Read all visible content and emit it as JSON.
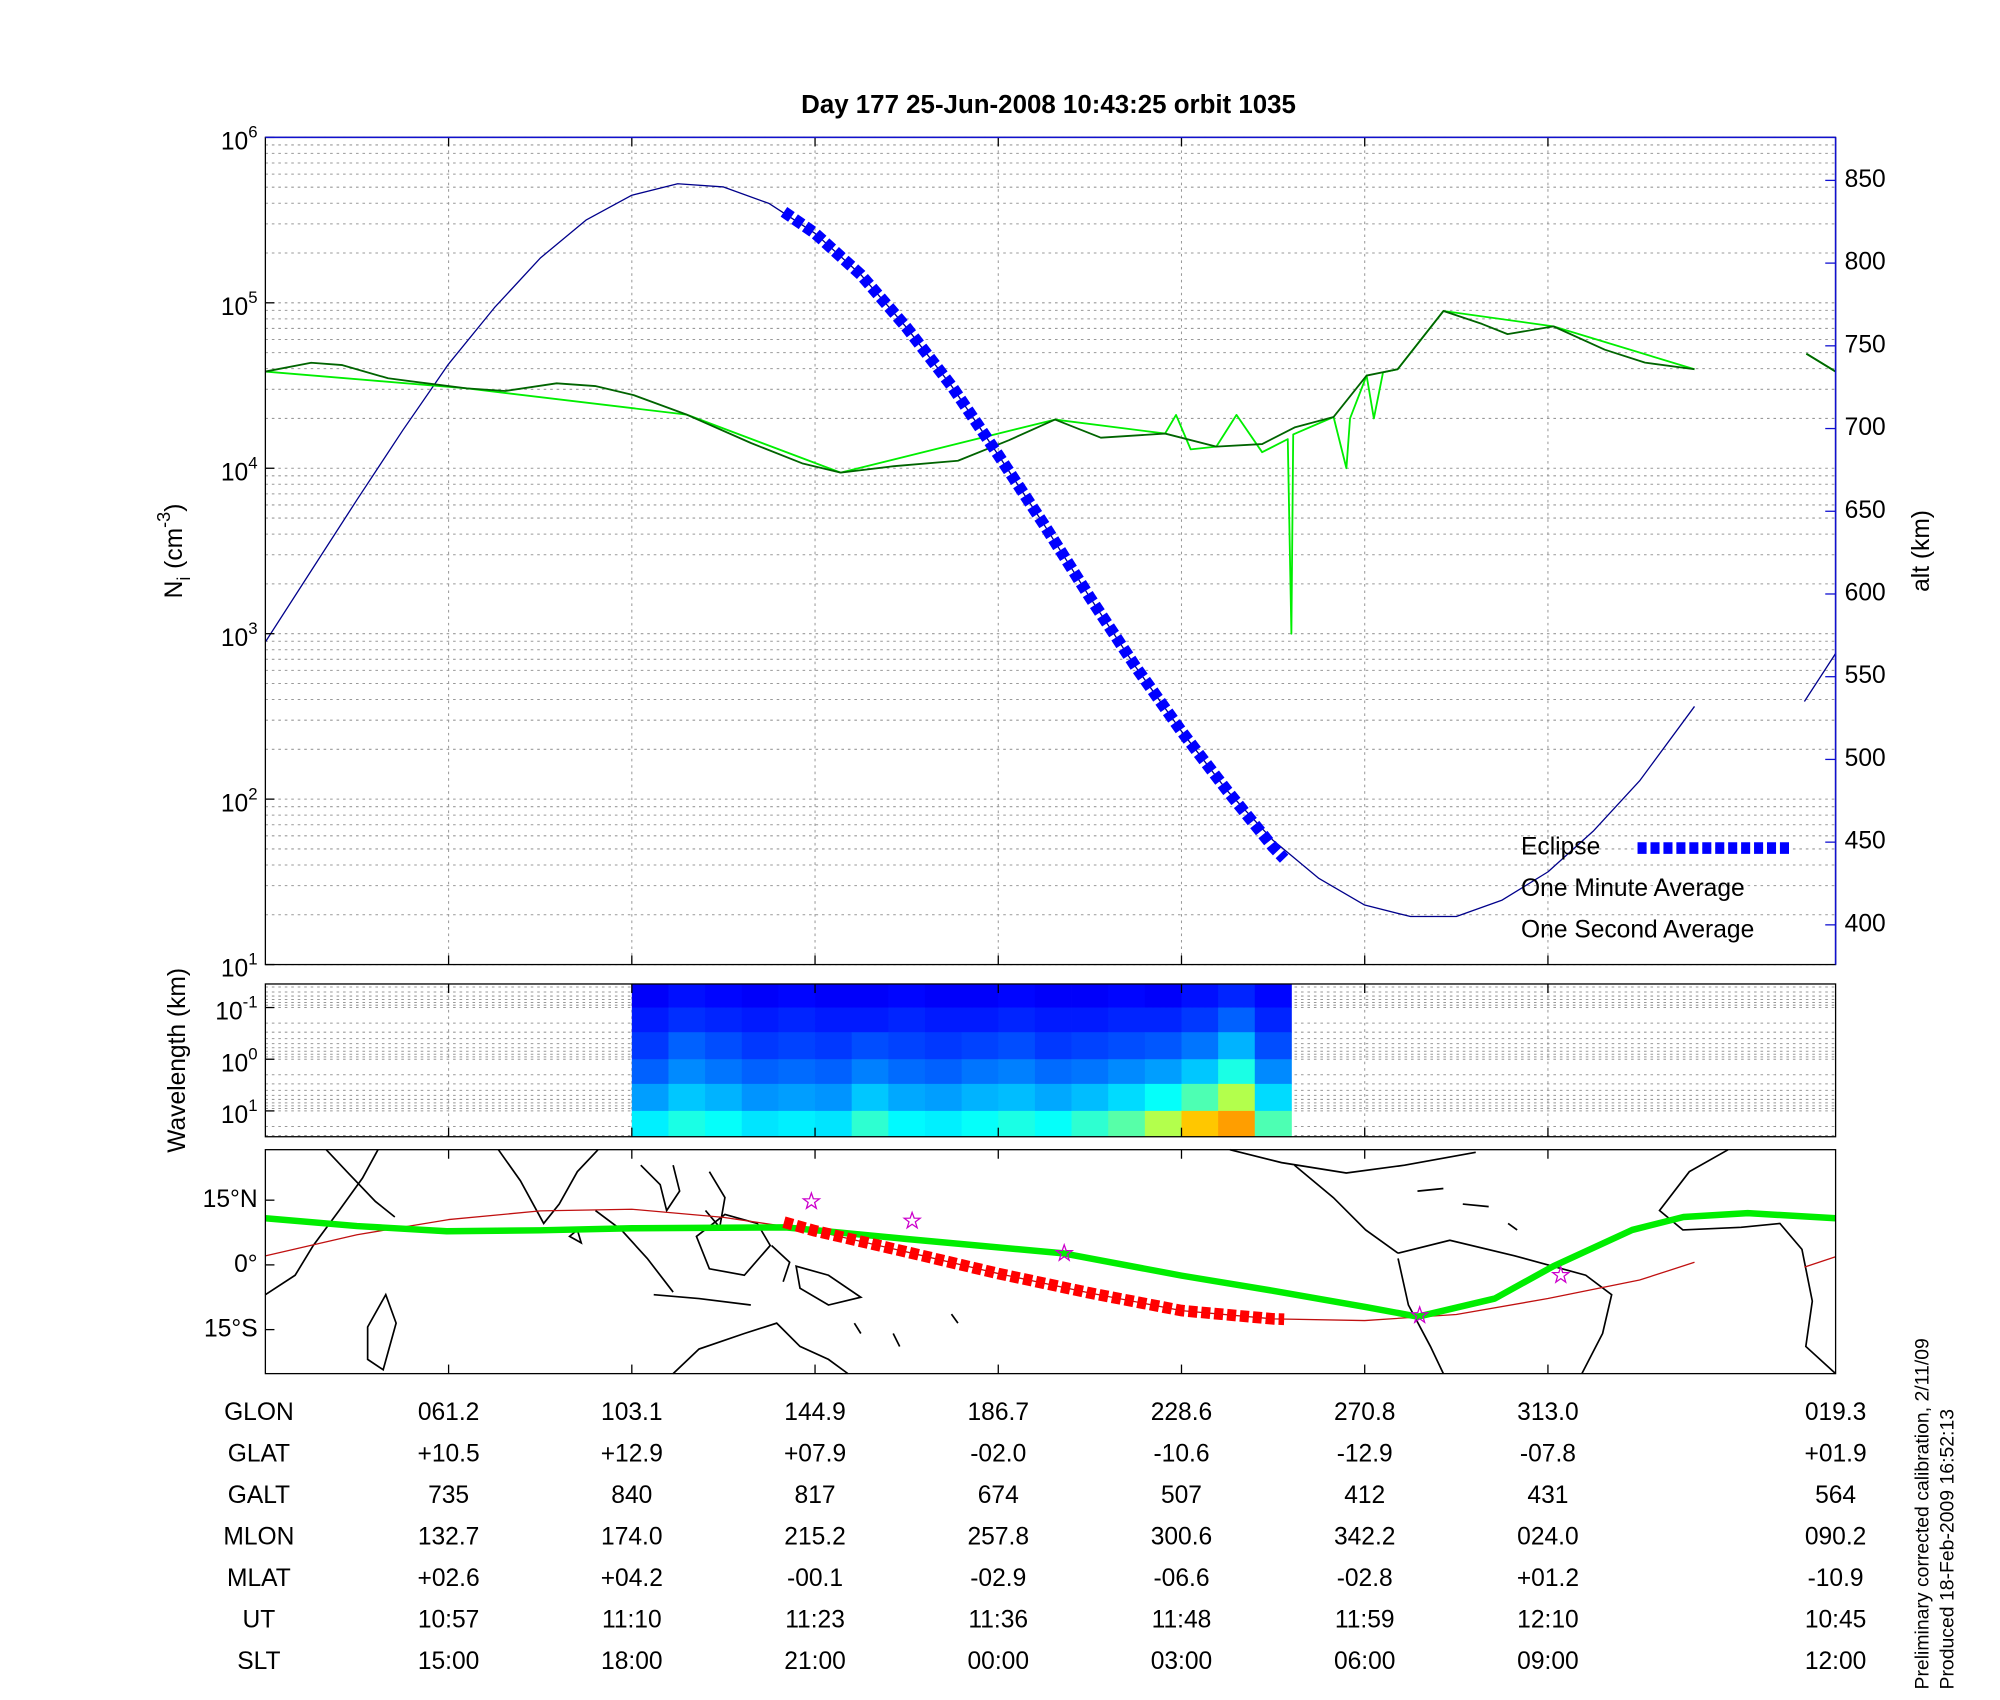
{
  "chart_data": [
    {
      "type": "line",
      "title": "Day 177  25-Jun-2008 10:43:25   orbit 1035",
      "ylabel": [
        "N",
        "i",
        "(cm",
        "-3",
        ")"
      ],
      "y2label": "alt (km)",
      "xlim": [
        0,
        8.57
      ],
      "xticks": [
        1,
        2,
        3,
        4,
        5,
        6,
        7
      ],
      "ylim": [
        10,
        1000000
      ],
      "yscale": "log",
      "yticks": [
        {
          "value": 10,
          "label": "10",
          "power": "1"
        },
        {
          "value": 100,
          "label": "10",
          "power": "2"
        },
        {
          "value": 1000,
          "label": "10",
          "power": "3"
        },
        {
          "value": 10000,
          "label": "10",
          "power": "4"
        },
        {
          "value": 100000,
          "label": "10",
          "power": "5"
        },
        {
          "value": 1000000,
          "label": "10",
          "power": "6"
        }
      ],
      "yminorticks": [
        20,
        30,
        40,
        50,
        60,
        70,
        80,
        90,
        200,
        300,
        400,
        500,
        600,
        700,
        800,
        900,
        2000,
        3000,
        4000,
        5000,
        6000,
        7000,
        8000,
        9000,
        20000,
        30000,
        40000,
        50000,
        60000,
        70000,
        80000,
        90000,
        200000,
        300000,
        400000,
        500000,
        600000,
        700000,
        800000,
        900000
      ],
      "y2lim": [
        376,
        876
      ],
      "y2ticks": [
        400,
        450,
        500,
        550,
        600,
        650,
        700,
        750,
        800,
        850
      ],
      "y2color": "#1010d0",
      "grid": true,
      "legend": "lower right",
      "series": [
        {
          "name": "Eclipse",
          "color": "#0000ff",
          "axis": "y2",
          "style": "dashed-thick",
          "x": [
            2.83,
            3,
            3.25,
            3.5,
            3.75,
            4,
            4.25,
            4.5,
            4.75,
            5,
            5.25,
            5.5,
            5.56
          ],
          "values": [
            831,
            818,
            793,
            761,
            725,
            684,
            642,
            598,
            556,
            517,
            481,
            447,
            440
          ]
        },
        {
          "name": "One Minute Average",
          "color": "#006400",
          "legend_color": "#000000",
          "x": [
            0,
            0.25,
            0.42,
            0.67,
            0.88,
            1.1,
            1.31,
            1.59,
            1.8,
            2.01,
            2.3,
            2.65,
            2.93,
            3.14,
            3.43,
            3.78,
            4.06,
            4.31,
            4.56,
            4.91,
            5.19,
            5.44,
            5.62,
            5.83,
            6.01,
            6.18,
            6.43,
            6.64,
            6.78,
            7.03,
            7.31,
            7.53,
            7.8,
            null,
            8.41,
            8.57
          ],
          "values": [
            38400,
            43400,
            42000,
            35000,
            32600,
            30400,
            29300,
            32600,
            31400,
            27700,
            21100,
            14200,
            10700,
            9400,
            10300,
            11100,
            14800,
            19700,
            15300,
            16200,
            13500,
            14000,
            17700,
            20400,
            36300,
            39700,
            89300,
            74600,
            64700,
            72100,
            52100,
            43500,
            39700,
            null,
            49300,
            38400
          ]
        },
        {
          "name": "One Second Average",
          "color": "#00ee00",
          "x": [
            0,
            1.1,
            2.3,
            3.14,
            4.31,
            4.91,
            4.97,
            5.05,
            5.19,
            5.3,
            5.44,
            5.58,
            5.6,
            5.61,
            5.83,
            5.9,
            5.92,
            6.01,
            6.05,
            6.1,
            6.18,
            6.43,
            7.03,
            7.8,
            null,
            8.41,
            8.57
          ],
          "values": [
            38400,
            30400,
            21100,
            9400,
            19700,
            16200,
            21000,
            13000,
            13500,
            21000,
            12500,
            15000,
            1000,
            16000,
            20400,
            10000,
            20000,
            36300,
            20000,
            38000,
            39700,
            89300,
            72100,
            39700,
            null,
            49300,
            38400
          ]
        },
        {
          "color": "#00008b",
          "axis": "y2",
          "x": [
            0,
            0.25,
            0.5,
            0.75,
            1,
            1.25,
            1.5,
            1.75,
            2,
            2.25,
            2.5,
            2.75,
            3,
            3.25,
            3.5,
            3.75,
            4,
            4.25,
            4.5,
            4.75,
            5,
            5.25,
            5.5,
            5.75,
            6,
            6.25,
            6.5,
            6.75,
            7,
            7.25,
            7.5,
            7.8,
            null,
            8.4,
            8.57
          ],
          "values": [
            571,
            614,
            657,
            699,
            739,
            773,
            803,
            826,
            841,
            848,
            846,
            836,
            818,
            793,
            761,
            725,
            684,
            642,
            598,
            556,
            517,
            481,
            451,
            428,
            412,
            405,
            405,
            415,
            432,
            457,
            487,
            532,
            null,
            535,
            564
          ]
        }
      ]
    },
    {
      "type": "heatmap",
      "ylabel": "Wavelength (km)",
      "xlim": [
        0,
        8.57
      ],
      "xticks": [
        1,
        2,
        3,
        4,
        5,
        6,
        7
      ],
      "ylim": [
        0.035,
        31.6
      ],
      "yscale": "log",
      "yreversed": true,
      "yticks": [
        {
          "value": 0.1,
          "label": "10",
          "power": "-1"
        },
        {
          "value": 1,
          "label": "10",
          "power": "0"
        },
        {
          "value": 10,
          "label": "10",
          "power": "1"
        }
      ],
      "yminorticks": [
        0.04,
        0.05,
        0.06,
        0.07,
        0.08,
        0.09,
        0.2,
        0.3,
        0.4,
        0.5,
        0.6,
        0.7,
        0.8,
        0.9,
        2,
        3,
        4,
        5,
        6,
        7,
        8,
        9,
        20,
        30
      ],
      "grid": true,
      "xbins": [
        2.0,
        2.2,
        2.4,
        2.6,
        2.8,
        3.0,
        3.2,
        3.4,
        3.6,
        3.8,
        4.0,
        4.2,
        4.4,
        4.6,
        4.8,
        5.0,
        5.2,
        5.4,
        5.6
      ],
      "ybins": [
        0.035,
        0.1,
        0.3,
        1,
        3,
        10,
        31.6
      ],
      "values": [
        [
          0.12,
          0.14,
          0.13,
          0.12,
          0.13,
          0.12,
          0.12,
          0.13,
          0.12,
          0.12,
          0.13,
          0.12,
          0.12,
          0.13,
          0.12,
          0.14,
          0.16,
          0.13
        ],
        [
          0.15,
          0.17,
          0.16,
          0.15,
          0.16,
          0.15,
          0.15,
          0.16,
          0.15,
          0.15,
          0.16,
          0.15,
          0.15,
          0.16,
          0.16,
          0.18,
          0.22,
          0.16
        ],
        [
          0.18,
          0.22,
          0.2,
          0.18,
          0.19,
          0.18,
          0.2,
          0.19,
          0.18,
          0.19,
          0.2,
          0.18,
          0.19,
          0.2,
          0.21,
          0.24,
          0.3,
          0.2
        ],
        [
          0.22,
          0.26,
          0.24,
          0.22,
          0.23,
          0.22,
          0.25,
          0.23,
          0.22,
          0.24,
          0.25,
          0.23,
          0.24,
          0.26,
          0.28,
          0.32,
          0.4,
          0.26
        ],
        [
          0.28,
          0.32,
          0.3,
          0.27,
          0.28,
          0.27,
          0.32,
          0.29,
          0.28,
          0.3,
          0.31,
          0.29,
          0.31,
          0.34,
          0.38,
          0.45,
          0.55,
          0.34
        ],
        [
          0.36,
          0.4,
          0.38,
          0.35,
          0.36,
          0.35,
          0.42,
          0.37,
          0.36,
          0.38,
          0.4,
          0.38,
          0.42,
          0.46,
          0.55,
          0.68,
          0.72,
          0.45
        ]
      ]
    },
    {
      "type": "map",
      "xlim": [
        0,
        8.57
      ],
      "xticks": [
        1,
        2,
        3,
        4,
        5,
        6,
        7
      ],
      "ylim": [
        -25.2,
        26.7
      ],
      "yticks": [
        {
          "value": 15,
          "label": "15°N"
        },
        {
          "value": 0,
          "label": "0°"
        },
        {
          "value": -15,
          "label": "15°S"
        }
      ],
      "grid": false,
      "series": [
        {
          "color": "#c01010",
          "x": [
            0,
            0.5,
            1,
            1.5,
            2,
            2.5,
            3,
            3.5,
            4,
            4.5,
            5,
            5.5,
            6,
            6.5,
            7,
            7.5,
            7.8,
            null,
            8.4,
            8.57
          ],
          "values": [
            2.1,
            7,
            10.5,
            12.5,
            12.9,
            11,
            7.9,
            3,
            -2,
            -6.5,
            -10.6,
            -12.5,
            -12.9,
            -11.5,
            -7.8,
            -3.5,
            0.6,
            null,
            -0.5,
            1.9
          ]
        },
        {
          "color": "#00ee00",
          "style": "thick",
          "x": [
            0,
            0.5,
            0.99,
            1.5,
            2,
            2.84,
            3.5,
            4.35,
            5,
            5.5,
            6.01,
            6.29,
            6.71,
            7.03,
            7.46,
            7.74,
            8.09,
            8.57
          ],
          "values": [
            10.8,
            9,
            7.8,
            8,
            8.5,
            8.7,
            6,
            2.7,
            -2.5,
            -6,
            -9.8,
            -12,
            -7.8,
            -0.3,
            8.1,
            11.1,
            12,
            10.8
          ]
        },
        {
          "color": "#ff0000",
          "style": "dashed-thick",
          "x": [
            2.83,
            3,
            3.5,
            4,
            4.5,
            5,
            5.5,
            5.56
          ],
          "values": [
            9.9,
            7.9,
            3,
            -2,
            -6.5,
            -10.6,
            -12.5,
            -12.6
          ]
        },
        {
          "color": "#cc00cc",
          "style": "star",
          "x": [
            2.98,
            3.53,
            4.36,
            6.3,
            7.07
          ],
          "values": [
            14.7,
            10.2,
            2.7,
            -11.7,
            -2.4
          ]
        }
      ]
    }
  ],
  "table": {
    "rows": [
      [
        "GLON",
        "061.2",
        "103.1",
        "144.9",
        "186.7",
        "228.6",
        "270.8",
        "313.0",
        "019.3"
      ],
      [
        "GLAT",
        "+10.5",
        "+12.9",
        "+07.9",
        "-02.0",
        "-10.6",
        "-12.9",
        "-07.8",
        "+01.9"
      ],
      [
        "GALT",
        "735",
        "840",
        "817",
        "674",
        "507",
        "412",
        "431",
        "564"
      ],
      [
        "MLON",
        "132.7",
        "174.0",
        "215.2",
        "257.8",
        "300.6",
        "342.2",
        "024.0",
        "090.2"
      ],
      [
        "MLAT",
        "+02.6",
        "+04.2",
        "-00.1",
        "-02.9",
        "-06.6",
        "-02.8",
        "+01.2",
        "-10.9"
      ],
      [
        "UT",
        "10:57",
        "11:10",
        "11:23",
        "11:36",
        "11:48",
        "11:59",
        "12:10",
        "10:45"
      ],
      [
        "SLT",
        "15:00",
        "18:00",
        "21:00",
        "00:00",
        "03:00",
        "06:00",
        "09:00",
        "12:00"
      ]
    ]
  },
  "notes": [
    "Preliminary corrected calibration, 2/11/09",
    "Produced 18-Feb-2009 16:52:13"
  ]
}
